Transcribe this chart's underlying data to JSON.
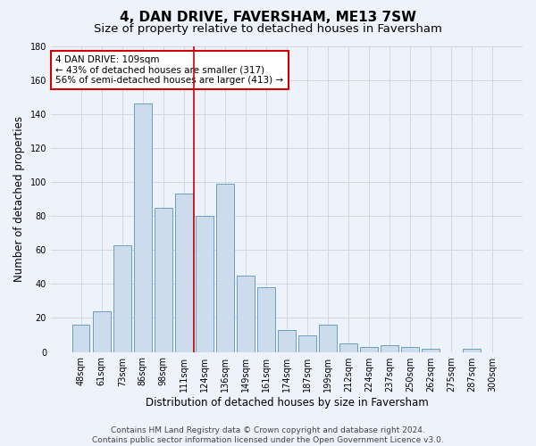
{
  "title": "4, DAN DRIVE, FAVERSHAM, ME13 7SW",
  "subtitle": "Size of property relative to detached houses in Faversham",
  "xlabel": "Distribution of detached houses by size in Faversham",
  "ylabel": "Number of detached properties",
  "bar_color": "#ccdcec",
  "bar_edge_color": "#6a9fbf",
  "background_color": "#eef2fa",
  "grid_color": "#d0d8e8",
  "categories": [
    "48sqm",
    "61sqm",
    "73sqm",
    "86sqm",
    "98sqm",
    "111sqm",
    "124sqm",
    "136sqm",
    "149sqm",
    "161sqm",
    "174sqm",
    "187sqm",
    "199sqm",
    "212sqm",
    "224sqm",
    "237sqm",
    "250sqm",
    "262sqm",
    "275sqm",
    "287sqm",
    "300sqm"
  ],
  "values": [
    16,
    24,
    63,
    146,
    85,
    93,
    80,
    99,
    45,
    38,
    13,
    10,
    16,
    5,
    3,
    4,
    3,
    2,
    0,
    2,
    0
  ],
  "ylim": [
    0,
    180
  ],
  "yticks": [
    0,
    20,
    40,
    60,
    80,
    100,
    120,
    140,
    160,
    180
  ],
  "vline_x": 5.5,
  "vline_color": "#cc0000",
  "annotation_text": "4 DAN DRIVE: 109sqm\n← 43% of detached houses are smaller (317)\n56% of semi-detached houses are larger (413) →",
  "footnote": "Contains HM Land Registry data © Crown copyright and database right 2024.\nContains public sector information licensed under the Open Government Licence v3.0.",
  "title_fontsize": 11,
  "subtitle_fontsize": 9.5,
  "label_fontsize": 8.5,
  "tick_fontsize": 7,
  "annotation_fontsize": 7.5,
  "footnote_fontsize": 6.5
}
